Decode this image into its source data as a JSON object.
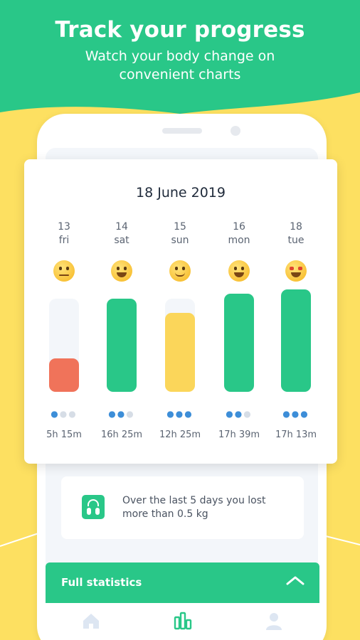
{
  "header": {
    "title": "Track your progress",
    "subtitle_line1": "Watch your body change on",
    "subtitle_line2": "convenient charts"
  },
  "colors": {
    "green": "#29c788",
    "yellow": "#fde061",
    "red": "#f0735a",
    "bar_yellow": "#fbd65a",
    "drop_blue": "#3d8ed8"
  },
  "card": {
    "date": "18 June 2019",
    "days": [
      {
        "num": "13",
        "name": "fri",
        "mood": "sad",
        "fill": 0.36,
        "color": "red",
        "drops": 1,
        "duration": "5h 15m"
      },
      {
        "num": "14",
        "name": "sat",
        "mood": "grin",
        "fill": 1.0,
        "color": "green",
        "drops": 2,
        "duration": "16h 25m"
      },
      {
        "num": "15",
        "name": "sun",
        "mood": "smile",
        "fill": 0.85,
        "color": "yellow",
        "drops": 3,
        "duration": "12h 25m"
      },
      {
        "num": "16",
        "name": "mon",
        "mood": "grin",
        "fill": 1.05,
        "color": "green",
        "drops": 2,
        "duration": "17h 39m"
      },
      {
        "num": "18",
        "name": "tue",
        "mood": "star-eyes",
        "fill": 1.1,
        "color": "green",
        "drops": 3,
        "duration": "17h 13m"
      }
    ]
  },
  "info": {
    "icon": "scale-icon",
    "text_line1": "Over the last 5 days you lost",
    "text_line2": "more than 0.5 kg"
  },
  "stats": {
    "label": "Full statistics",
    "chevron": "chevron-up-icon"
  },
  "tabbar": {
    "tabs": [
      "home-icon",
      "stats-icon",
      "profile-icon"
    ],
    "active": "stats-icon"
  }
}
